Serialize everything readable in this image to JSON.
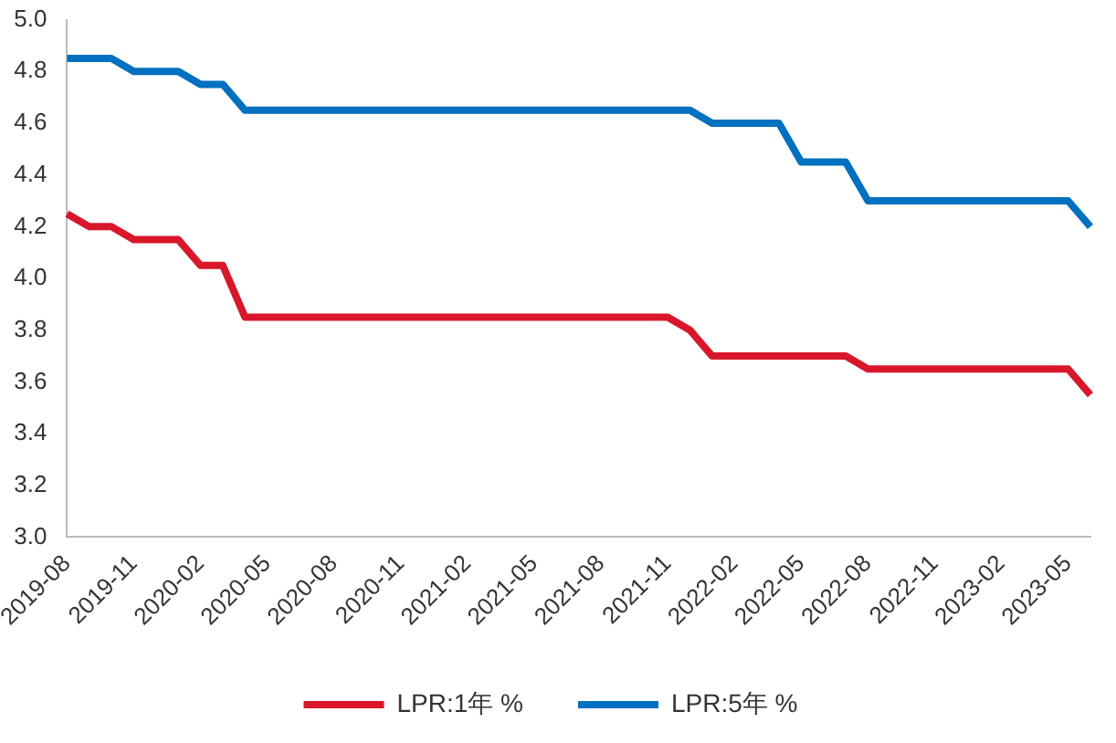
{
  "chart_data": {
    "type": "line",
    "categories": [
      "2019-08",
      null,
      null,
      "2019-11",
      null,
      null,
      "2020-02",
      null,
      null,
      "2020-05",
      null,
      null,
      "2020-08",
      null,
      null,
      "2020-11",
      null,
      null,
      "2021-02",
      null,
      null,
      "2021-05",
      null,
      null,
      "2021-08",
      null,
      null,
      "2021-11",
      null,
      null,
      "2022-02",
      null,
      null,
      "2022-05",
      null,
      null,
      "2022-08",
      null,
      null,
      "2022-11",
      null,
      null,
      "2023-02",
      null,
      null,
      "2023-05",
      null
    ],
    "series": [
      {
        "name": "LPR:1年 %",
        "color": "#d9172a",
        "values": [
          4.25,
          4.2,
          4.2,
          4.15,
          4.15,
          4.15,
          4.05,
          4.05,
          3.85,
          3.85,
          3.85,
          3.85,
          3.85,
          3.85,
          3.85,
          3.85,
          3.85,
          3.85,
          3.85,
          3.85,
          3.85,
          3.85,
          3.85,
          3.85,
          3.85,
          3.85,
          3.85,
          3.85,
          3.8,
          3.7,
          3.7,
          3.7,
          3.7,
          3.7,
          3.7,
          3.7,
          3.65,
          3.65,
          3.65,
          3.65,
          3.65,
          3.65,
          3.65,
          3.65,
          3.65,
          3.65,
          3.55
        ]
      },
      {
        "name": "LPR:5年 %",
        "color": "#0070c0",
        "values": [
          4.85,
          4.85,
          4.85,
          4.8,
          4.8,
          4.8,
          4.75,
          4.75,
          4.65,
          4.65,
          4.65,
          4.65,
          4.65,
          4.65,
          4.65,
          4.65,
          4.65,
          4.65,
          4.65,
          4.65,
          4.65,
          4.65,
          4.65,
          4.65,
          4.65,
          4.65,
          4.65,
          4.65,
          4.65,
          4.6,
          4.6,
          4.6,
          4.6,
          4.45,
          4.45,
          4.45,
          4.3,
          4.3,
          4.3,
          4.3,
          4.3,
          4.3,
          4.3,
          4.3,
          4.3,
          4.3,
          4.2
        ]
      }
    ],
    "ylim": [
      3,
      5
    ],
    "yticks": [
      {
        "value": 3,
        "label": "3.0"
      },
      {
        "value": 3.2,
        "label": "3.2"
      },
      {
        "value": 3.4,
        "label": "3.4"
      },
      {
        "value": 3.6,
        "label": "3.6"
      },
      {
        "value": 3.8,
        "label": "3.8"
      },
      {
        "value": 4,
        "label": "4.0"
      },
      {
        "value": 4.2,
        "label": "4.2"
      },
      {
        "value": 4.4,
        "label": "4.4"
      },
      {
        "value": 4.6,
        "label": "4.6"
      },
      {
        "value": 4.8,
        "label": "4.8"
      },
      {
        "value": 5,
        "label": "5.0"
      }
    ],
    "legend": "bottom",
    "marker": "none",
    "line_style": "solid"
  }
}
